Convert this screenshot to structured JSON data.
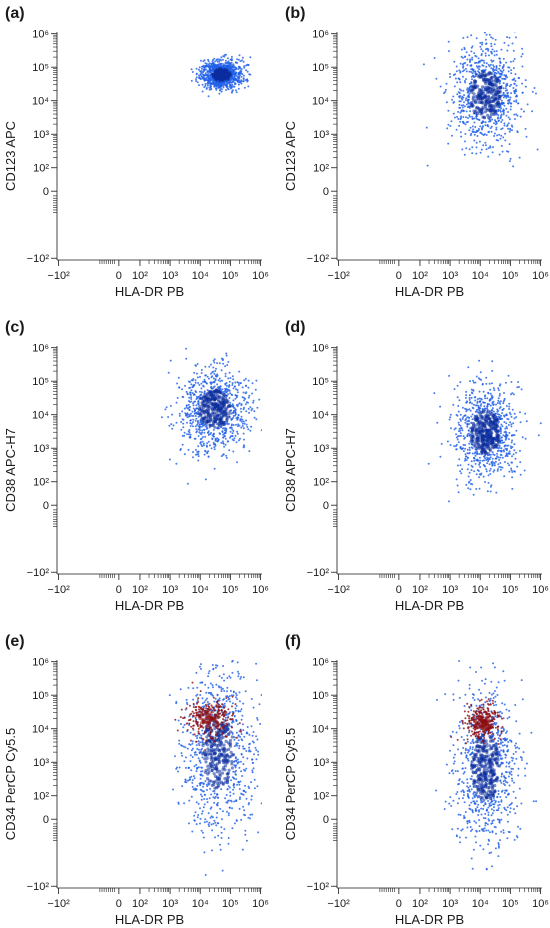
{
  "figure": {
    "panels": [
      "(a)",
      "(b)",
      "(c)",
      "(d)",
      "(e)",
      "(f)"
    ]
  },
  "colors": {
    "population_blue": "#1f5fe8",
    "population_dark_blue": "#0b2e9e",
    "population_red": "#8c0d10",
    "axis": "#1a1a1a"
  },
  "chart_data": [
    {
      "panel": "(a)",
      "type": "scatter",
      "xlabel": "HLA-DR PB",
      "ylabel": "CD123 APC",
      "x_scale": "biexponential",
      "y_scale": "biexponential",
      "xticks": [
        "−10²",
        "0",
        "10²",
        "10³",
        "10⁴",
        "10⁵",
        "10⁶"
      ],
      "yticks": [
        "10⁶",
        "10⁵",
        "10⁴",
        "10³",
        "10²",
        "0",
        "−10²"
      ],
      "series": [
        {
          "color": "#1f5fe8",
          "x_range": [
            8000,
            250000
          ],
          "y_range": [
            25000,
            200000
          ],
          "x_center": 50000,
          "y_center": 60000
        }
      ]
    },
    {
      "panel": "(b)",
      "type": "scatter",
      "xlabel": "HLA-DR PB",
      "ylabel": "CD123 APC",
      "x_scale": "biexponential",
      "y_scale": "biexponential",
      "xticks": [
        "−10²",
        "0",
        "10²",
        "10³",
        "10⁴",
        "10⁵",
        "10⁶"
      ],
      "yticks": [
        "10⁶",
        "10⁵",
        "10⁴",
        "10³",
        "10²",
        "0",
        "−10²"
      ],
      "series": [
        {
          "color": "#1f5fe8",
          "x_range": [
            1000,
            300000
          ],
          "y_range": [
            100,
            200000
          ],
          "x_center": 15000,
          "y_center": 15000
        }
      ]
    },
    {
      "panel": "(c)",
      "type": "scatter",
      "xlabel": "HLA-DR PB",
      "ylabel": "CD38 APC-H7",
      "x_scale": "biexponential",
      "y_scale": "biexponential",
      "xticks": [
        "−10²",
        "0",
        "10²",
        "10³",
        "10⁴",
        "10⁵",
        "10⁶"
      ],
      "yticks": [
        "10⁶",
        "10⁵",
        "10⁴",
        "10³",
        "10²",
        "0",
        "−10²"
      ],
      "series": [
        {
          "color": "#1f5fe8",
          "x_range": [
            1000,
            300000
          ],
          "y_range": [
            300,
            150000
          ],
          "x_center": 30000,
          "y_center": 15000
        }
      ]
    },
    {
      "panel": "(d)",
      "type": "scatter",
      "xlabel": "HLA-DR PB",
      "ylabel": "CD38 APC-H7",
      "x_scale": "biexponential",
      "y_scale": "biexponential",
      "xticks": [
        "−10²",
        "0",
        "10²",
        "10³",
        "10⁴",
        "10⁵",
        "10⁶"
      ],
      "yticks": [
        "10⁶",
        "10⁵",
        "10⁴",
        "10³",
        "10²",
        "0",
        "−10²"
      ],
      "series": [
        {
          "color": "#1f5fe8",
          "x_range": [
            1000,
            200000
          ],
          "y_range": [
            80,
            80000
          ],
          "x_center": 15000,
          "y_center": 3000
        }
      ]
    },
    {
      "panel": "(e)",
      "type": "scatter",
      "xlabel": "HLA-DR PB",
      "ylabel": "CD34 PerCP Cy5.5",
      "x_scale": "biexponential",
      "y_scale": "biexponential",
      "xticks": [
        "−10²",
        "0",
        "10²",
        "10³",
        "10⁴",
        "10⁵",
        "10⁶"
      ],
      "yticks": [
        "10⁶",
        "10⁵",
        "10⁴",
        "10³",
        "10²",
        "0",
        "−10²"
      ],
      "series": [
        {
          "color": "#1f5fe8",
          "x_range": [
            1000,
            300000
          ],
          "y_range": [
            -100,
            30000
          ],
          "x_center": 40000,
          "y_center": 2000
        },
        {
          "color": "#8c0d10",
          "x_range": [
            3000,
            150000
          ],
          "y_range": [
            5000,
            80000
          ],
          "x_center": 20000,
          "y_center": 20000
        }
      ]
    },
    {
      "panel": "(f)",
      "type": "scatter",
      "xlabel": "HLA-DR PB",
      "ylabel": "CD34 PerCP Cy5.5",
      "x_scale": "biexponential",
      "y_scale": "biexponential",
      "xticks": [
        "−10²",
        "0",
        "10²",
        "10³",
        "10⁴",
        "10⁵",
        "10⁶"
      ],
      "yticks": [
        "10⁶",
        "10⁵",
        "10⁴",
        "10³",
        "10²",
        "0",
        "−10²"
      ],
      "series": [
        {
          "color": "#1f5fe8",
          "x_range": [
            1000,
            150000
          ],
          "y_range": [
            -100,
            10000
          ],
          "x_center": 15000,
          "y_center": 700
        },
        {
          "color": "#8c0d10",
          "x_range": [
            3000,
            60000
          ],
          "y_range": [
            5000,
            60000
          ],
          "x_center": 12000,
          "y_center": 15000
        }
      ]
    }
  ]
}
